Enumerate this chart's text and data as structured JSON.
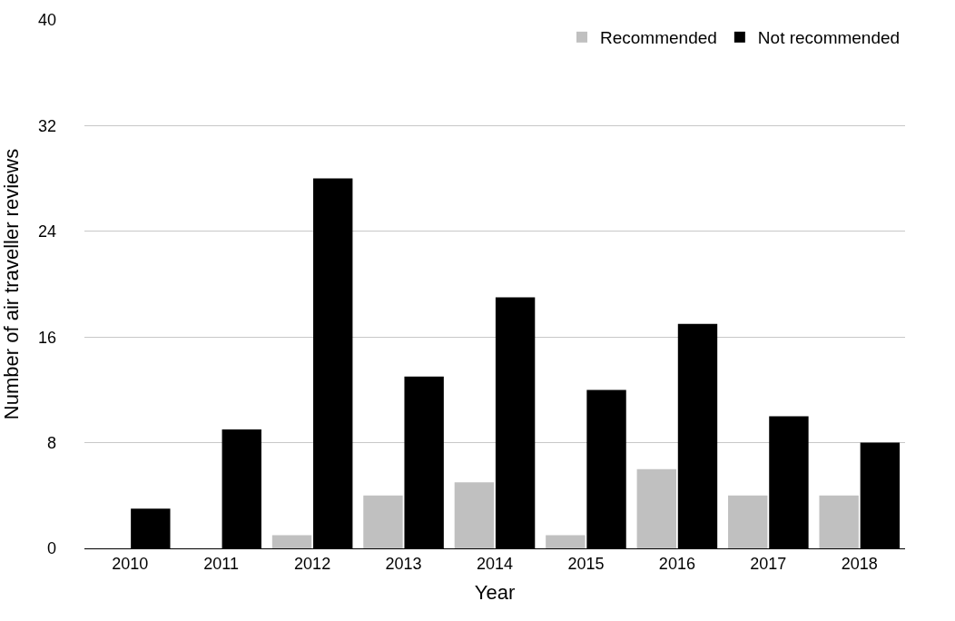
{
  "chart_data": {
    "type": "bar",
    "xlabel": "Year",
    "ylabel": "Number of air traveller reviews",
    "categories": [
      "2010",
      "2011",
      "2012",
      "2013",
      "2014",
      "2015",
      "2016",
      "2017",
      "2018"
    ],
    "series": [
      {
        "name": "Recommended",
        "color": "#c0c0c0",
        "values": [
          0,
          0,
          1,
          4,
          5,
          1,
          6,
          4,
          4
        ]
      },
      {
        "name": "Not recommended",
        "color": "#000000",
        "values": [
          3,
          9,
          28,
          13,
          19,
          12,
          17,
          10,
          8
        ]
      }
    ],
    "ylim": [
      0,
      40
    ],
    "yticks": [
      0,
      8,
      16,
      24,
      32,
      40
    ],
    "grid": "y",
    "legend": "top right"
  }
}
